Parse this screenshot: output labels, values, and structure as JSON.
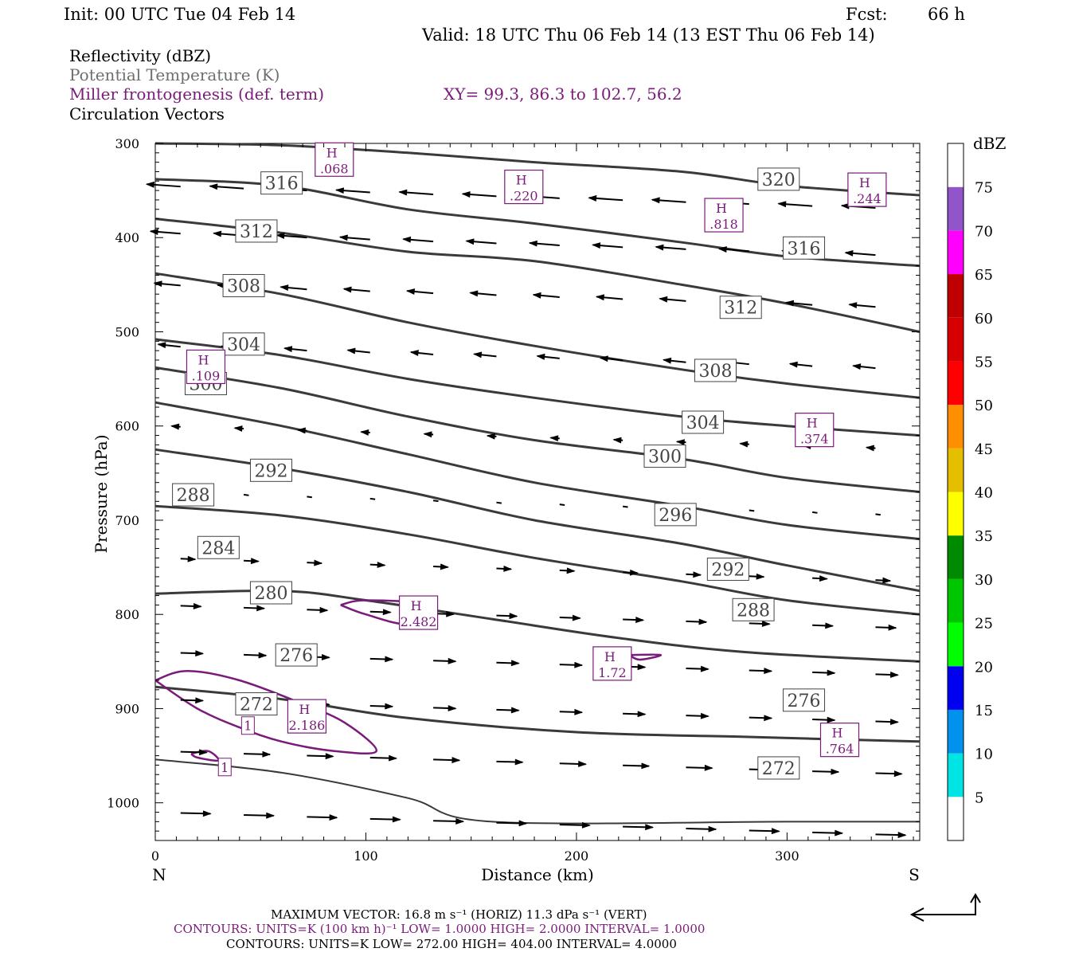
{
  "header": {
    "init": "Init: 00 UTC Tue 04 Feb 14",
    "fcst_label": "Fcst:",
    "fcst_value": "66 h",
    "valid": "Valid: 18 UTC Thu 06 Feb 14 (13 EST Thu 06 Feb 14)"
  },
  "legend": {
    "line1": "Reflectivity (dBZ)",
    "line2": "Potential Temperature (K)",
    "line3": "Miller frontogenesis (def. term)",
    "line4": "Circulation Vectors",
    "xy": "XY=  99.3, 86.3 to 102.7, 56.2"
  },
  "colors": {
    "theta": "#3a3a3a",
    "fronto": "#7a1a7a",
    "legend_gray": "#6e6e6e"
  },
  "chart_data": {
    "type": "cross-section",
    "xlabel": "Distance (km)",
    "ylabel": "Pressure (hPa)",
    "xlim": [
      0,
      363
    ],
    "ylim": [
      1040,
      300
    ],
    "x_ticks": [
      0,
      100,
      200,
      300
    ],
    "y_ticks": [
      300,
      400,
      500,
      600,
      700,
      800,
      900,
      1000
    ],
    "x_end_labels": {
      "left": "N",
      "right": "S"
    },
    "theta_contours": [
      {
        "level": "272",
        "points": [
          [
            0,
            954
          ],
          [
            60,
            968
          ],
          [
            120,
            995
          ],
          [
            160,
            1020
          ],
          [
            300,
            1020
          ],
          [
            363,
            1020
          ]
        ]
      },
      {
        "level": "276",
        "points": [
          [
            0,
            877
          ],
          [
            60,
            890
          ],
          [
            120,
            910
          ],
          [
            200,
            925
          ],
          [
            280,
            930
          ],
          [
            363,
            935
          ]
        ]
      },
      {
        "level": "280",
        "points": [
          [
            0,
            778
          ],
          [
            60,
            775
          ],
          [
            100,
            785
          ],
          [
            160,
            805
          ],
          [
            220,
            825
          ],
          [
            280,
            840
          ],
          [
            363,
            850
          ]
        ]
      },
      {
        "level": "284",
        "points": [
          [
            0,
            685
          ],
          [
            60,
            695
          ],
          [
            120,
            715
          ],
          [
            180,
            740
          ],
          [
            250,
            765
          ],
          [
            300,
            785
          ],
          [
            363,
            800
          ]
        ]
      },
      {
        "level": "288",
        "points": [
          [
            0,
            625
          ],
          [
            60,
            645
          ],
          [
            120,
            670
          ],
          [
            180,
            700
          ],
          [
            250,
            725
          ],
          [
            300,
            748
          ],
          [
            363,
            775
          ]
        ]
      },
      {
        "level": "292",
        "points": [
          [
            0,
            575
          ],
          [
            60,
            600
          ],
          [
            120,
            630
          ],
          [
            180,
            660
          ],
          [
            250,
            685
          ],
          [
            300,
            705
          ],
          [
            363,
            720
          ]
        ]
      },
      {
        "level": "296",
        "points": [
          [
            0,
            538
          ],
          [
            60,
            560
          ],
          [
            120,
            590
          ],
          [
            180,
            615
          ],
          [
            250,
            635
          ],
          [
            300,
            655
          ],
          [
            363,
            670
          ]
        ]
      },
      {
        "level": "300",
        "points": [
          [
            0,
            508
          ],
          [
            60,
            525
          ],
          [
            120,
            550
          ],
          [
            180,
            570
          ],
          [
            250,
            590
          ],
          [
            300,
            600
          ],
          [
            363,
            610
          ]
        ]
      },
      {
        "level": "304",
        "points": [
          [
            0,
            438
          ],
          [
            60,
            460
          ],
          [
            120,
            490
          ],
          [
            180,
            515
          ],
          [
            250,
            540
          ],
          [
            300,
            555
          ],
          [
            363,
            570
          ]
        ]
      },
      {
        "level": "308",
        "points": [
          [
            0,
            380
          ],
          [
            60,
            395
          ],
          [
            120,
            415
          ],
          [
            180,
            425
          ],
          [
            250,
            450
          ],
          [
            300,
            470
          ],
          [
            363,
            500
          ]
        ]
      },
      {
        "level": "312",
        "points": [
          [
            0,
            338
          ],
          [
            60,
            345
          ],
          [
            120,
            370
          ],
          [
            180,
            385
          ],
          [
            250,
            405
          ],
          [
            300,
            420
          ],
          [
            363,
            430
          ]
        ]
      },
      {
        "level": "316",
        "points": [
          [
            0,
            300
          ],
          [
            60,
            302
          ],
          [
            120,
            310
          ],
          [
            180,
            320
          ],
          [
            250,
            330
          ],
          [
            300,
            345
          ],
          [
            363,
            355
          ]
        ]
      }
    ],
    "theta_labels": [
      {
        "text": "316",
        "x": 60,
        "p": 342
      },
      {
        "text": "312",
        "x": 48,
        "p": 393
      },
      {
        "text": "308",
        "x": 42,
        "p": 451
      },
      {
        "text": "304",
        "x": 42,
        "p": 513
      },
      {
        "text": "300",
        "x": 24,
        "p": 555
      },
      {
        "text": "292",
        "x": 55,
        "p": 647
      },
      {
        "text": "288",
        "x": 18,
        "p": 673
      },
      {
        "text": "284",
        "x": 30,
        "p": 729
      },
      {
        "text": "280",
        "x": 55,
        "p": 777
      },
      {
        "text": "276",
        "x": 67,
        "p": 843
      },
      {
        "text": "272",
        "x": 48,
        "p": 895
      },
      {
        "text": "320",
        "x": 296,
        "p": 338
      },
      {
        "text": "316",
        "x": 308,
        "p": 411
      },
      {
        "text": "312",
        "x": 278,
        "p": 474
      },
      {
        "text": "308",
        "x": 266,
        "p": 541
      },
      {
        "text": "304",
        "x": 260,
        "p": 596
      },
      {
        "text": "300",
        "x": 242,
        "p": 632
      },
      {
        "text": "296",
        "x": 247,
        "p": 694
      },
      {
        "text": "292",
        "x": 272,
        "p": 752
      },
      {
        "text": "288",
        "x": 284,
        "p": 795
      },
      {
        "text": "276",
        "x": 308,
        "p": 891
      },
      {
        "text": "272",
        "x": 296,
        "p": 963
      }
    ],
    "fronto_contours": [
      {
        "level": "1",
        "points": [
          [
            0,
            870
          ],
          [
            15,
            860
          ],
          [
            40,
            870
          ],
          [
            70,
            895
          ],
          [
            90,
            915
          ],
          [
            105,
            945
          ],
          [
            85,
            945
          ],
          [
            60,
            935
          ],
          [
            40,
            920
          ],
          [
            20,
            900
          ],
          [
            0,
            870
          ]
        ]
      },
      {
        "level": "1",
        "points": [
          [
            88,
            790
          ],
          [
            100,
            785
          ],
          [
            130,
            790
          ],
          [
            120,
            810
          ],
          [
            100,
            800
          ],
          [
            88,
            790
          ]
        ]
      },
      {
        "level": "1",
        "points": [
          [
            225,
            843
          ],
          [
            240,
            843
          ],
          [
            230,
            848
          ],
          [
            225,
            843
          ]
        ]
      },
      {
        "level": "1",
        "points": [
          [
            17,
            948
          ],
          [
            25,
            945
          ],
          [
            30,
            955
          ],
          [
            20,
            952
          ],
          [
            17,
            948
          ]
        ]
      }
    ],
    "fronto_maxima": [
      {
        "label": "H",
        "value": ".068",
        "x": 85,
        "p": 318
      },
      {
        "label": "H",
        "value": ".220",
        "x": 175,
        "p": 347
      },
      {
        "label": "H",
        "value": ".818",
        "x": 270,
        "p": 377
      },
      {
        "label": "H",
        "value": ".244",
        "x": 338,
        "p": 350
      },
      {
        "label": "H",
        "value": ".109",
        "x": 24,
        "p": 538
      },
      {
        "label": "H",
        "value": ".374",
        "x": 313,
        "p": 605
      },
      {
        "label": "H",
        "value": "2.482",
        "x": 125,
        "p": 799
      },
      {
        "label": "H",
        "value": "1.72",
        "x": 217,
        "p": 853
      },
      {
        "label": "H",
        "value": "2.186",
        "x": 72,
        "p": 909
      },
      {
        "label": "H",
        "value": ".764",
        "x": 325,
        "p": 934
      }
    ],
    "fronto_small_labels": [
      {
        "text": "1",
        "x": 44,
        "p": 918
      },
      {
        "text": "1",
        "x": 33,
        "p": 962
      }
    ],
    "colorbar": {
      "title": "dBZ",
      "levels": [
        "5",
        "10",
        "15",
        "20",
        "25",
        "30",
        "35",
        "40",
        "45",
        "50",
        "55",
        "60",
        "65",
        "70",
        "75"
      ],
      "colors": [
        "#ffffff",
        "#00e4e4",
        "#0092ee",
        "#0000f0",
        "#00fe00",
        "#00c600",
        "#008a00",
        "#ffff00",
        "#e6be00",
        "#ff8e00",
        "#ff0000",
        "#d60000",
        "#c00000",
        "#ff00ff",
        "#9055c8",
        "#ffffff"
      ]
    },
    "annotations": {
      "max_vector": "MAXIMUM VECTOR:  16.8 m s⁻¹ (HORIZ)          11.3 dPa s⁻¹ (VERT)",
      "contours1": "CONTOURS:  UNITS=K (100 km h)⁻¹  LOW=  1.0000       HIGH=  2.0000       INTERVAL=   1.0000",
      "contours2": "CONTOURS:  UNITS=K  LOW=  272.00      HIGH=  404.00      INTERVAL=    4.0000"
    }
  }
}
